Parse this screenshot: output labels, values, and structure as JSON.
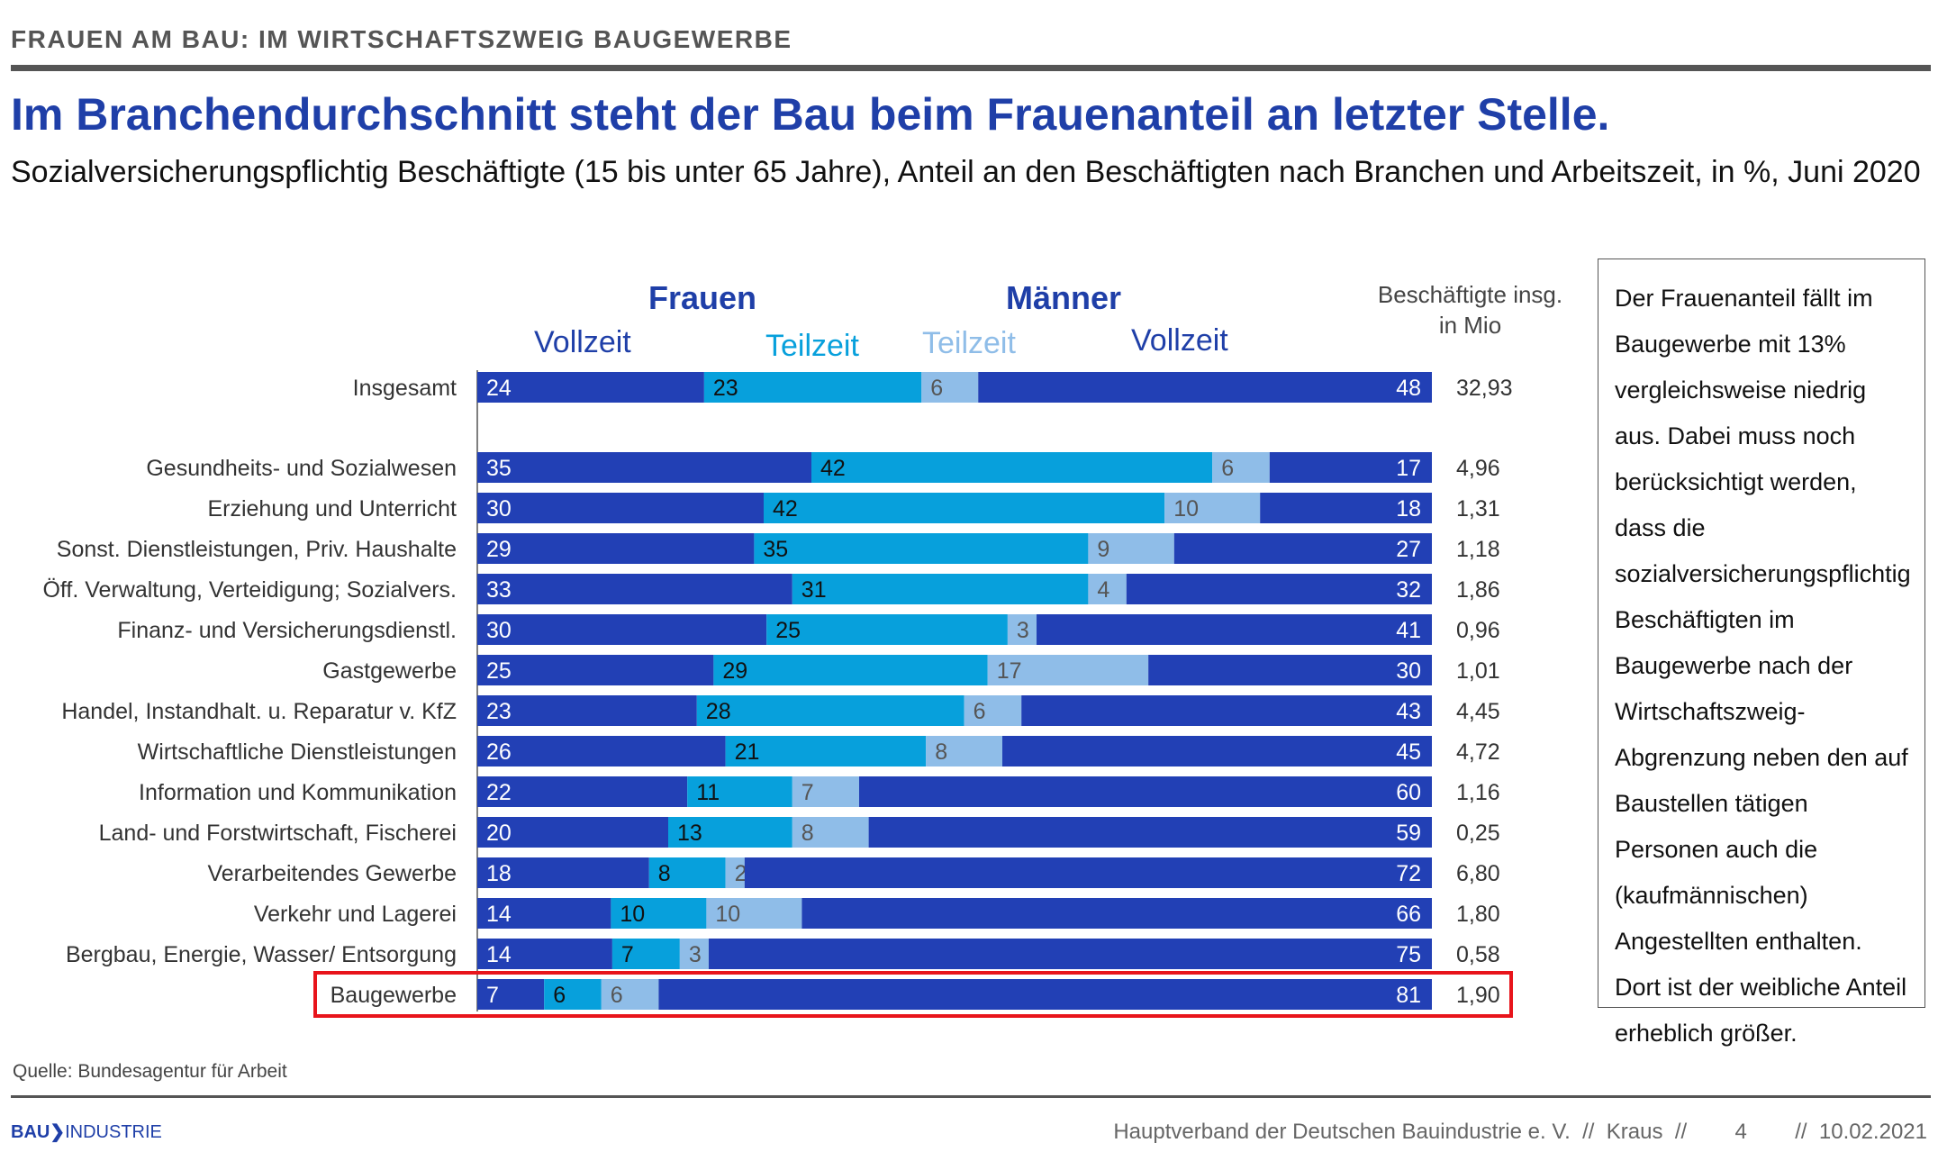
{
  "kicker": "FRAUEN AM BAU: IM WIRTSCHAFTSZWEIG BAUGEWERBE",
  "headline": "Im Branchendurchschnitt steht der Bau beim Frauenanteil an letzter Stelle.",
  "subtitle": "Sozialversicherungspflichtig Beschäftigte (15 bis unter 65 Jahre), Anteil an den Beschäftigten nach Branchen und Arbeitszeit, in %, Juni 2020",
  "colors": {
    "frauen_vollzeit": "#2240b5",
    "frauen_teilzeit": "#07a0dc",
    "maenner_teilzeit": "#8fbde8",
    "maenner_vollzeit": "#2240b5",
    "highlight": "#e8141b"
  },
  "chart_data": {
    "type": "bar",
    "stacked": true,
    "orientation": "horizontal",
    "group_labels": {
      "frauen": "Frauen",
      "maenner": "Männer"
    },
    "series_labels": {
      "frauen_vollzeit": "Vollzeit",
      "frauen_teilzeit": "Teilzeit",
      "maenner_teilzeit": "Teilzeit",
      "maenner_vollzeit": "Vollzeit"
    },
    "employees_header": "Beschäftigte insg. in Mio",
    "highlighted_category": "Baugewerbe",
    "rows": [
      {
        "label": "Insgesamt",
        "fv": 24,
        "ft": 23,
        "mt": 6,
        "mv": 48,
        "total": "32,93"
      },
      {
        "label": "Gesundheits- und Sozialwesen",
        "fv": 35,
        "ft": 42,
        "mt": 6,
        "mv": 17,
        "total": "4,96"
      },
      {
        "label": "Erziehung und Unterricht",
        "fv": 30,
        "ft": 42,
        "mt": 10,
        "mv": 18,
        "total": "1,31"
      },
      {
        "label": "Sonst. Dienstleistungen, Priv. Haushalte",
        "fv": 29,
        "ft": 35,
        "mt": 9,
        "mv": 27,
        "total": "1,18"
      },
      {
        "label": "Öff. Verwaltung, Verteidigung; Sozialvers.",
        "fv": 33,
        "ft": 31,
        "mt": 4,
        "mv": 32,
        "total": "1,86"
      },
      {
        "label": "Finanz- und Versicherungsdienstl.",
        "fv": 30,
        "ft": 25,
        "mt": 3,
        "mv": 41,
        "total": "0,96"
      },
      {
        "label": "Gastgewerbe",
        "fv": 25,
        "ft": 29,
        "mt": 17,
        "mv": 30,
        "total": "1,01"
      },
      {
        "label": "Handel, Instandhalt. u. Reparatur v. KfZ",
        "fv": 23,
        "ft": 28,
        "mt": 6,
        "mv": 43,
        "total": "4,45"
      },
      {
        "label": "Wirtschaftliche Dienstleistungen",
        "fv": 26,
        "ft": 21,
        "mt": 8,
        "mv": 45,
        "total": "4,72"
      },
      {
        "label": "Information und Kommunikation",
        "fv": 22,
        "ft": 11,
        "mt": 7,
        "mv": 60,
        "total": "1,16"
      },
      {
        "label": "Land- und Forstwirtschaft, Fischerei",
        "fv": 20,
        "ft": 13,
        "mt": 8,
        "mv": 59,
        "total": "0,25"
      },
      {
        "label": "Verarbeitendes Gewerbe",
        "fv": 18,
        "ft": 8,
        "mt": 2,
        "mv": 72,
        "total": "6,80"
      },
      {
        "label": "Verkehr und Lagerei",
        "fv": 14,
        "ft": 10,
        "mt": 10,
        "mv": 66,
        "total": "1,80"
      },
      {
        "label": "Bergbau, Energie, Wasser/ Entsorgung",
        "fv": 14,
        "ft": 7,
        "mt": 3,
        "mv": 75,
        "total": "0,58"
      },
      {
        "label": "Baugewerbe",
        "fv": 7,
        "ft": 6,
        "mt": 6,
        "mv": 81,
        "total": "1,90"
      }
    ]
  },
  "note": "Der Frauenanteil fällt im Baugewerbe mit 13% vergleichsweise niedrig aus. Dabei muss noch berücksichtigt werden, dass die sozialversicherungspflichtig Beschäftigten im Baugewerbe nach der Wirtschaftszweig-Abgrenzung neben den auf Baustellen tätigen Personen auch die (kaufmännischen) Angestellten enthalten. Dort ist der weibliche Anteil erheblich größer.",
  "source": "Quelle: Bundesagentur für Arbeit",
  "logo": {
    "bold": "BAU",
    "mark": "❯",
    "rest": "INDUSTRIE"
  },
  "footer": "Hauptverband der Deutschen Bauindustrie e. V.  //  Kraus  //        4        //  10.02.2021"
}
